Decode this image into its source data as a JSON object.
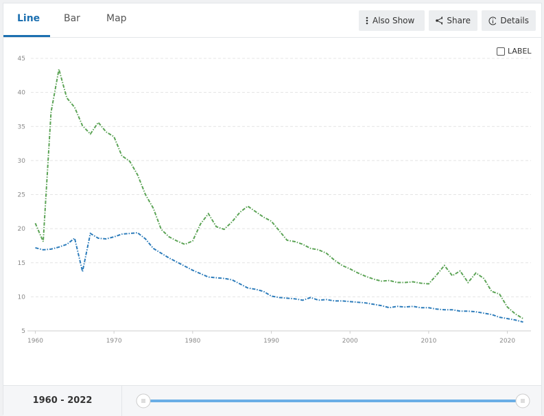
{
  "ui": {
    "tabs": [
      "Line",
      "Bar",
      "Map"
    ],
    "buttons": [
      "Also Show",
      "Share",
      "Details"
    ],
    "label_toggle": "LABEL",
    "range": "1960 - 2022"
  },
  "chart_data": {
    "type": "line",
    "x": [
      1960,
      1961,
      1962,
      1963,
      1964,
      1965,
      1966,
      1967,
      1968,
      1969,
      1970,
      1971,
      1972,
      1973,
      1974,
      1975,
      1976,
      1977,
      1978,
      1979,
      1980,
      1981,
      1982,
      1983,
      1984,
      1985,
      1986,
      1987,
      1988,
      1989,
      1990,
      1991,
      1992,
      1993,
      1994,
      1995,
      1996,
      1997,
      1998,
      1999,
      2000,
      2001,
      2002,
      2003,
      2004,
      2005,
      2006,
      2007,
      2008,
      2009,
      2010,
      2011,
      2012,
      2013,
      2014,
      2015,
      2016,
      2017,
      2018,
      2019,
      2020,
      2021,
      2022
    ],
    "series": [
      {
        "color": "#5ba355",
        "values": [
          20.8,
          18.1,
          37.1,
          43.4,
          39.2,
          37.8,
          35.1,
          33.9,
          35.6,
          34.2,
          33.5,
          30.7,
          29.9,
          27.9,
          25.0,
          23.0,
          19.9,
          18.8,
          18.2,
          17.7,
          18.2,
          20.7,
          22.2,
          20.3,
          19.9,
          21.0,
          22.4,
          23.3,
          22.5,
          21.7,
          21.1,
          19.7,
          18.3,
          18.1,
          17.7,
          17.1,
          16.9,
          16.4,
          15.4,
          14.6,
          14.1,
          13.5,
          13.0,
          12.6,
          12.3,
          12.4,
          12.1,
          12.1,
          12.2,
          12.0,
          11.9,
          13.2,
          14.6,
          13.1,
          13.8,
          12.1,
          13.5,
          12.7,
          10.8,
          10.4,
          8.5,
          7.5,
          6.8
        ]
      },
      {
        "color": "#2b7bba",
        "values": [
          17.2,
          16.9,
          17.0,
          17.3,
          17.7,
          18.6,
          13.7,
          19.3,
          18.6,
          18.5,
          18.8,
          19.2,
          19.3,
          19.4,
          18.5,
          17.1,
          16.4,
          15.7,
          15.1,
          14.5,
          13.9,
          13.4,
          12.9,
          12.8,
          12.7,
          12.5,
          11.9,
          11.3,
          11.1,
          10.8,
          10.1,
          9.9,
          9.8,
          9.7,
          9.5,
          9.9,
          9.5,
          9.6,
          9.4,
          9.4,
          9.3,
          9.2,
          9.1,
          8.9,
          8.7,
          8.4,
          8.6,
          8.5,
          8.6,
          8.4,
          8.4,
          8.2,
          8.1,
          8.1,
          7.9,
          7.9,
          7.8,
          7.6,
          7.4,
          7.0,
          6.8,
          6.6,
          6.3
        ]
      }
    ],
    "xlim": [
      1959,
      2023
    ],
    "xticks": [
      1960,
      1970,
      1980,
      1990,
      2000,
      2010,
      2020
    ],
    "ylim": [
      5,
      45
    ],
    "yticks": [
      5,
      10,
      15,
      20,
      25,
      30,
      35,
      40,
      45
    ],
    "grid": true
  }
}
